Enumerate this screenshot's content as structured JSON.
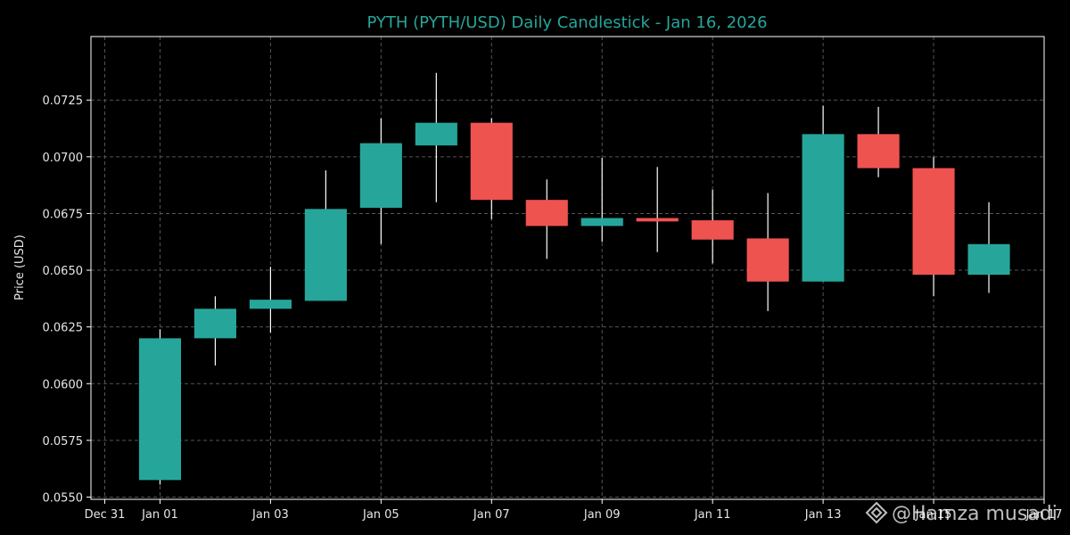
{
  "chart_data": {
    "type": "candlestick",
    "title": "PYTH (PYTH/USD) Daily Candlestick - Jan 16, 2026",
    "ylabel": "Price (USD)",
    "xlabel": "",
    "ylim": [
      0.0549,
      0.0753
    ],
    "xlim": [
      "2025-12-30T18:00",
      "2026-01-17T00:00"
    ],
    "grid": true,
    "up_color": "#26a69a",
    "down_color": "#ef5350",
    "y_ticks": [
      "0.0550",
      "0.0575",
      "0.0600",
      "0.0625",
      "0.0650",
      "0.0675",
      "0.0700",
      "0.0725"
    ],
    "x_ticks": [
      {
        "date": "2025-12-31",
        "label": "Dec 31"
      },
      {
        "date": "2026-01-01",
        "label": "Jan 01"
      },
      {
        "date": "2026-01-03",
        "label": "Jan 03"
      },
      {
        "date": "2026-01-05",
        "label": "Jan 05"
      },
      {
        "date": "2026-01-07",
        "label": "Jan 07"
      },
      {
        "date": "2026-01-09",
        "label": "Jan 09"
      },
      {
        "date": "2026-01-11",
        "label": "Jan 11"
      },
      {
        "date": "2026-01-13",
        "label": "Jan 13"
      },
      {
        "date": "2026-01-15",
        "label": "Jan 15"
      },
      {
        "date": "2026-01-17",
        "label": "Jan 17"
      }
    ],
    "candles": [
      {
        "date": "2026-01-01",
        "open": 0.05575,
        "high": 0.0624,
        "low": 0.05555,
        "close": 0.062
      },
      {
        "date": "2026-01-02",
        "open": 0.062,
        "high": 0.06385,
        "low": 0.0608,
        "close": 0.0633
      },
      {
        "date": "2026-01-03",
        "open": 0.0633,
        "high": 0.06515,
        "low": 0.06225,
        "close": 0.0637
      },
      {
        "date": "2026-01-04",
        "open": 0.06365,
        "high": 0.0694,
        "low": 0.06365,
        "close": 0.0677
      },
      {
        "date": "2026-01-05",
        "open": 0.06775,
        "high": 0.0717,
        "low": 0.06615,
        "close": 0.0706
      },
      {
        "date": "2026-01-06",
        "open": 0.0705,
        "high": 0.0737,
        "low": 0.068,
        "close": 0.0715
      },
      {
        "date": "2026-01-07",
        "open": 0.0715,
        "high": 0.0717,
        "low": 0.06725,
        "close": 0.0681
      },
      {
        "date": "2026-01-08",
        "open": 0.0681,
        "high": 0.069,
        "low": 0.0655,
        "close": 0.06695
      },
      {
        "date": "2026-01-09",
        "open": 0.06695,
        "high": 0.06995,
        "low": 0.06625,
        "close": 0.0673
      },
      {
        "date": "2026-01-10",
        "open": 0.0673,
        "high": 0.06955,
        "low": 0.0658,
        "close": 0.06715
      },
      {
        "date": "2026-01-11",
        "open": 0.0672,
        "high": 0.06855,
        "low": 0.0653,
        "close": 0.06635
      },
      {
        "date": "2026-01-12",
        "open": 0.0664,
        "high": 0.0684,
        "low": 0.0632,
        "close": 0.0645
      },
      {
        "date": "2026-01-13",
        "open": 0.0645,
        "high": 0.07225,
        "low": 0.0645,
        "close": 0.071
      },
      {
        "date": "2026-01-14",
        "open": 0.071,
        "high": 0.0722,
        "low": 0.0691,
        "close": 0.0695
      },
      {
        "date": "2026-01-15",
        "open": 0.0695,
        "high": 0.07,
        "low": 0.06385,
        "close": 0.0648
      },
      {
        "date": "2026-01-16",
        "open": 0.0648,
        "high": 0.068,
        "low": 0.064,
        "close": 0.06615
      }
    ]
  },
  "watermark": {
    "text": "@Hamza musadi",
    "icon": "binance-diamond-icon"
  }
}
